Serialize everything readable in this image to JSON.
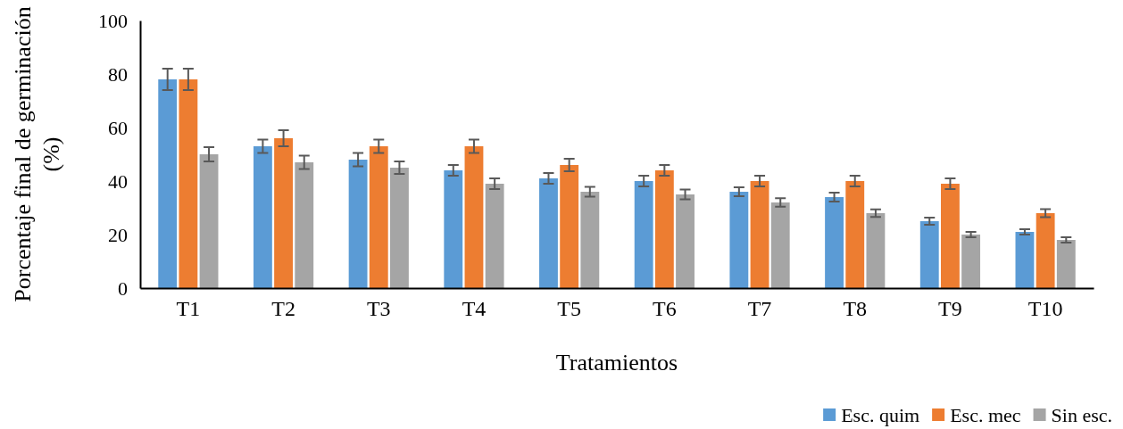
{
  "chart_data": {
    "type": "bar",
    "xlabel": "Tratamientos",
    "ylabel": "Porcentaje final de germinación (%)",
    "categories": [
      "T1",
      "T2",
      "T3",
      "T4",
      "T5",
      "T6",
      "T7",
      "T8",
      "T9",
      "T10"
    ],
    "series": [
      {
        "name": "Esc. quim",
        "color": "#5b9bd5",
        "values": [
          78,
          53,
          48,
          44,
          41,
          40,
          36,
          34,
          25,
          21
        ],
        "errors": [
          4,
          2.5,
          2.5,
          2,
          2,
          2,
          1.7,
          1.7,
          1.3,
          1
        ]
      },
      {
        "name": "Esc. mec",
        "color": "#ed7d31",
        "values": [
          78,
          56,
          53,
          53,
          46,
          44,
          40,
          40,
          39,
          28
        ],
        "errors": [
          4,
          3,
          2.5,
          2.5,
          2.3,
          2,
          2,
          2,
          2,
          1.5
        ]
      },
      {
        "name": "Sin esc.",
        "color": "#a5a5a5",
        "values": [
          50,
          47,
          45,
          39,
          36,
          35,
          32,
          28,
          20,
          18
        ],
        "errors": [
          2.7,
          2.5,
          2.3,
          2,
          1.8,
          1.8,
          1.6,
          1.4,
          1,
          1
        ]
      }
    ],
    "ylim": [
      0,
      100
    ],
    "yticks": [
      0,
      20,
      40,
      60,
      80,
      100
    ],
    "grid": false,
    "legend": "bottom right"
  }
}
